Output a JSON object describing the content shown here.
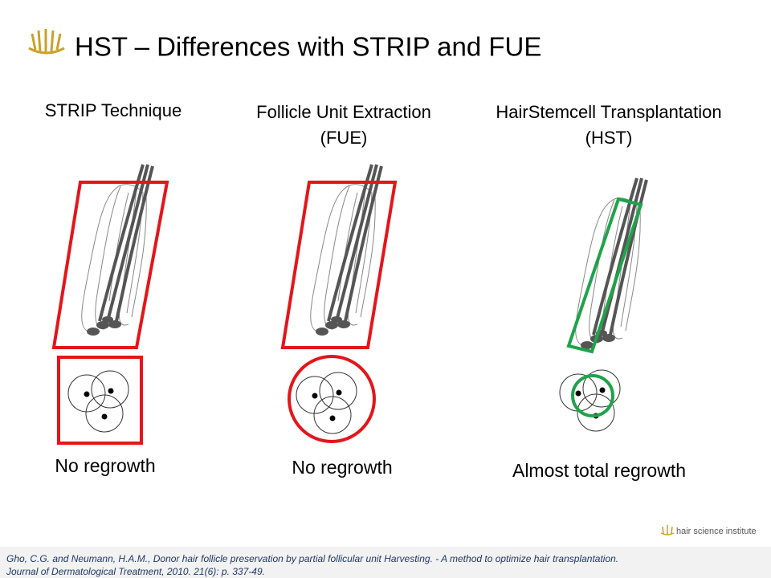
{
  "header": {
    "title": "HST – Differences with STRIP and FUE"
  },
  "columns": [
    {
      "heading": [
        "STRIP Technique"
      ],
      "caption": "No regrowth"
    },
    {
      "heading": [
        "Follicle Unit Extraction",
        "(FUE)"
      ],
      "caption": "No regrowth"
    },
    {
      "heading": [
        "HairStemcell Transplantation",
        "(HST)"
      ],
      "caption": "Almost total regrowth"
    }
  ],
  "logo": {
    "text": "hair science institute"
  },
  "footer": {
    "lines": [
      "Gho, C.G. and Neumann, H.A.M., Donor hair follicle preservation  by partial follicular unit Harvesting. - A method to optimize hair transplantation.",
      "Journal of Dermatological Treatment, 2010. 21(6): p. 337-49."
    ]
  }
}
